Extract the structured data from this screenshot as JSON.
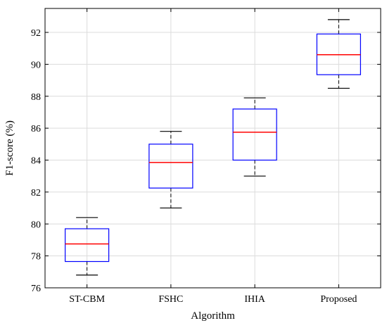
{
  "chart_data": {
    "type": "box",
    "xlabel": "Algorithm",
    "ylabel": "F1-score (%)",
    "ylim": [
      76,
      93.5
    ],
    "yticks": [
      76,
      78,
      80,
      82,
      84,
      86,
      88,
      90,
      92
    ],
    "grid": true,
    "box_color": "#0000ff",
    "median_color": "#ff0000",
    "whisker_color": "#000000",
    "categories": [
      "ST-CBM",
      "FSHC",
      "IHIA",
      "Proposed"
    ],
    "boxes": [
      {
        "name": "ST-CBM",
        "whisker_low": 76.8,
        "q1": 77.65,
        "median": 78.75,
        "q3": 79.7,
        "whisker_high": 80.4
      },
      {
        "name": "FSHC",
        "whisker_low": 81.0,
        "q1": 82.25,
        "median": 83.85,
        "q3": 85.0,
        "whisker_high": 85.8
      },
      {
        "name": "IHIA",
        "whisker_low": 83.0,
        "q1": 84.0,
        "median": 85.75,
        "q3": 87.2,
        "whisker_high": 87.9
      },
      {
        "name": "Proposed",
        "whisker_low": 88.5,
        "q1": 89.35,
        "median": 90.6,
        "q3": 91.9,
        "whisker_high": 92.8
      }
    ]
  }
}
